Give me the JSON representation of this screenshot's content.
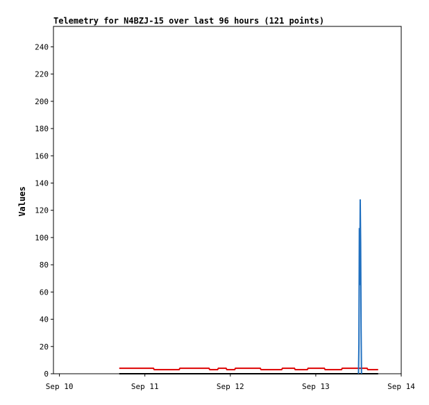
{
  "chart_data": {
    "type": "line",
    "title": "Telemetry for N4BZJ-15 over last 96 hours (121 points)",
    "ylabel": "Values",
    "xlim": [
      -0.07,
      4
    ],
    "xticks": [
      {
        "value": 0,
        "label": "Sep 10"
      },
      {
        "value": 1,
        "label": "Sep 11"
      },
      {
        "value": 2,
        "label": "Sep 12"
      },
      {
        "value": 3,
        "label": "Sep 13"
      },
      {
        "value": 4,
        "label": "Sep 14"
      }
    ],
    "ylim": [
      0,
      255
    ],
    "yticks": [
      0,
      20,
      40,
      60,
      80,
      100,
      120,
      140,
      160,
      180,
      200,
      220,
      240
    ],
    "series": [
      {
        "color": "#000000",
        "x": [
          0.7,
          3.73
        ],
        "values": [
          0,
          0
        ]
      },
      {
        "color": "#dd0000",
        "x": [
          0.7,
          1.1,
          1.11,
          1.4,
          1.41,
          1.75,
          1.76,
          1.85,
          1.86,
          1.95,
          1.96,
          2.05,
          2.06,
          2.35,
          2.36,
          2.6,
          2.61,
          2.75,
          2.76,
          2.9,
          2.91,
          3.1,
          3.11,
          3.3,
          3.31,
          3.6,
          3.61,
          3.73
        ],
        "values": [
          4,
          4,
          3,
          3,
          4,
          4,
          3,
          3,
          4,
          4,
          3,
          3,
          4,
          4,
          3,
          3,
          4,
          4,
          3,
          3,
          4,
          4,
          3,
          3,
          4,
          4,
          3,
          3
        ]
      },
      {
        "color": "#1f6fbf",
        "x": [
          3.5,
          3.505,
          3.51,
          3.515,
          3.52,
          3.525,
          3.53,
          3.535
        ],
        "values": [
          0,
          22,
          107,
          65,
          128,
          96,
          33,
          0
        ]
      }
    ]
  }
}
